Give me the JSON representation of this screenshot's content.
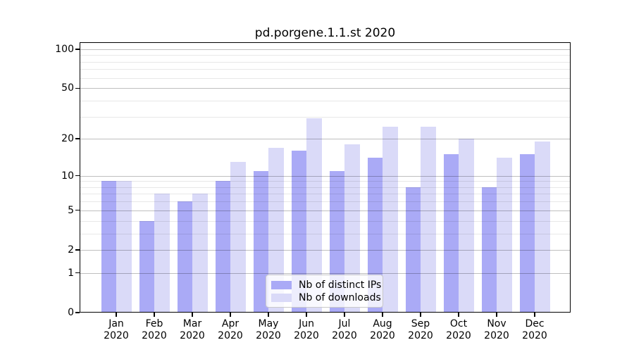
{
  "figure": {
    "title": "pd.porgene.1.1.st 2020"
  },
  "chart_data": {
    "type": "bar",
    "title": "pd.porgene.1.1.st 2020",
    "categories": [
      "Jan 2020",
      "Feb 2020",
      "Mar 2020",
      "Apr 2020",
      "May 2020",
      "Jun 2020",
      "Jul 2020",
      "Aug 2020",
      "Sep 2020",
      "Oct 2020",
      "Nov 2020",
      "Dec 2020"
    ],
    "series": [
      {
        "name": "Nb of distinct IPs",
        "color": "#aaaaf6",
        "values": [
          9,
          4,
          6,
          9,
          11,
          16,
          11,
          14,
          8,
          15,
          8,
          15
        ]
      },
      {
        "name": "Nb of downloads",
        "color": "#dadaf8",
        "values": [
          9,
          7,
          7,
          13,
          17,
          29,
          18,
          25,
          25,
          20,
          14,
          19
        ]
      }
    ],
    "xlabel": "",
    "ylabel": "",
    "y_ticks": [
      0,
      1,
      2,
      5,
      10,
      20,
      50,
      100
    ],
    "y_minor_ticks": [
      3,
      4,
      6,
      7,
      8,
      9,
      30,
      40,
      60,
      70,
      80,
      90
    ],
    "yscale": "log1p",
    "ylim": [
      0,
      113
    ],
    "grid": "on",
    "legend_position": "lower center",
    "axis_color": "#000000",
    "major_grid_color": "#bfbfbf",
    "minor_grid_color": "#e8e8e8"
  }
}
